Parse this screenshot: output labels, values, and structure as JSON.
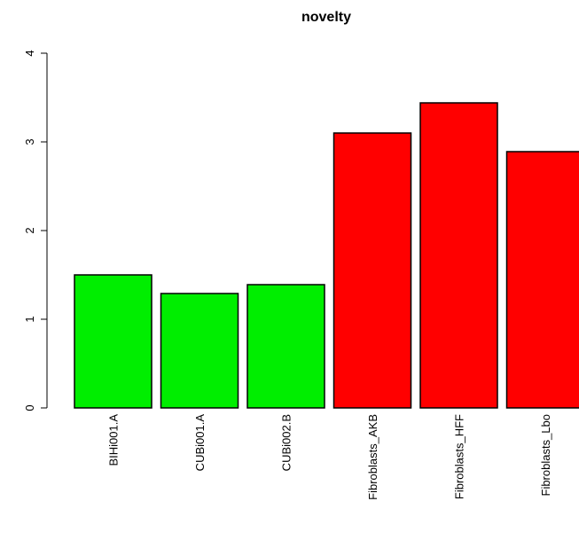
{
  "chart_data": {
    "type": "bar",
    "title": "novelty",
    "xlabel": "",
    "ylabel": "",
    "ylim": [
      0,
      4
    ],
    "yticks": [
      0,
      1,
      2,
      3,
      4
    ],
    "grid": false,
    "categories": [
      "BIHi001.A",
      "CUBi001.A",
      "CUBi002.B",
      "Fibroblasts_AKB",
      "Fibroblasts_HFF",
      "Fibroblasts_Lbo"
    ],
    "values": [
      1.5,
      1.29,
      1.39,
      3.1,
      3.44,
      2.89
    ],
    "colors": [
      "#00ee00",
      "#00ee00",
      "#00ee00",
      "#ff0000",
      "#ff0000",
      "#ff0000"
    ]
  }
}
